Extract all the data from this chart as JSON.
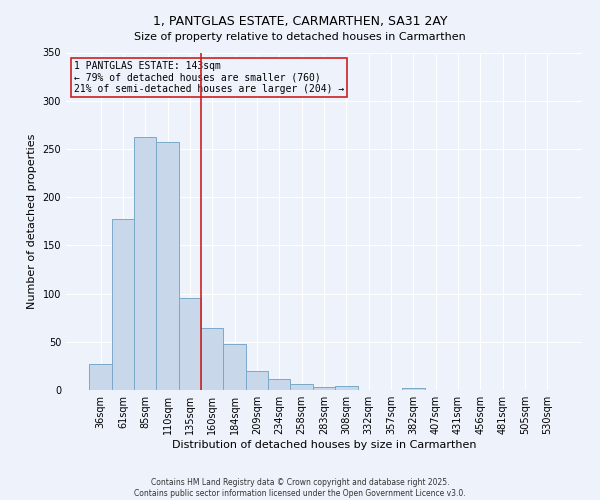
{
  "title": "1, PANTGLAS ESTATE, CARMARTHEN, SA31 2AY",
  "subtitle": "Size of property relative to detached houses in Carmarthen",
  "xlabel": "Distribution of detached houses by size in Carmarthen",
  "ylabel": "Number of detached properties",
  "bar_color": "#c8d8ea",
  "bar_edge_color": "#7aaac8",
  "background_color": "#eef2fb",
  "grid_color": "#ffffff",
  "categories": [
    "36sqm",
    "61sqm",
    "85sqm",
    "110sqm",
    "135sqm",
    "160sqm",
    "184sqm",
    "209sqm",
    "234sqm",
    "258sqm",
    "283sqm",
    "308sqm",
    "332sqm",
    "357sqm",
    "382sqm",
    "407sqm",
    "431sqm",
    "456sqm",
    "481sqm",
    "505sqm",
    "530sqm"
  ],
  "values": [
    27,
    177,
    262,
    257,
    95,
    64,
    48,
    20,
    11,
    6,
    3,
    4,
    0,
    0,
    2,
    0,
    0,
    0,
    0,
    0,
    0
  ],
  "ylim": [
    0,
    350
  ],
  "yticks": [
    0,
    50,
    100,
    150,
    200,
    250,
    300,
    350
  ],
  "vline_x": 4.5,
  "vline_color": "#cc2222",
  "annotation_box_color": "#cc2222",
  "annotation_text_line1": "1 PANTGLAS ESTATE: 143sqm",
  "annotation_text_line2": "← 79% of detached houses are smaller (760)",
  "annotation_text_line3": "21% of semi-detached houses are larger (204) →",
  "footer_line1": "Contains HM Land Registry data © Crown copyright and database right 2025.",
  "footer_line2": "Contains public sector information licensed under the Open Government Licence v3.0.",
  "title_fontsize": 9,
  "annotation_fontsize": 7,
  "footer_fontsize": 5.5,
  "xlabel_fontsize": 8,
  "ylabel_fontsize": 8,
  "tick_fontsize": 7,
  "ytick_fontsize": 7
}
